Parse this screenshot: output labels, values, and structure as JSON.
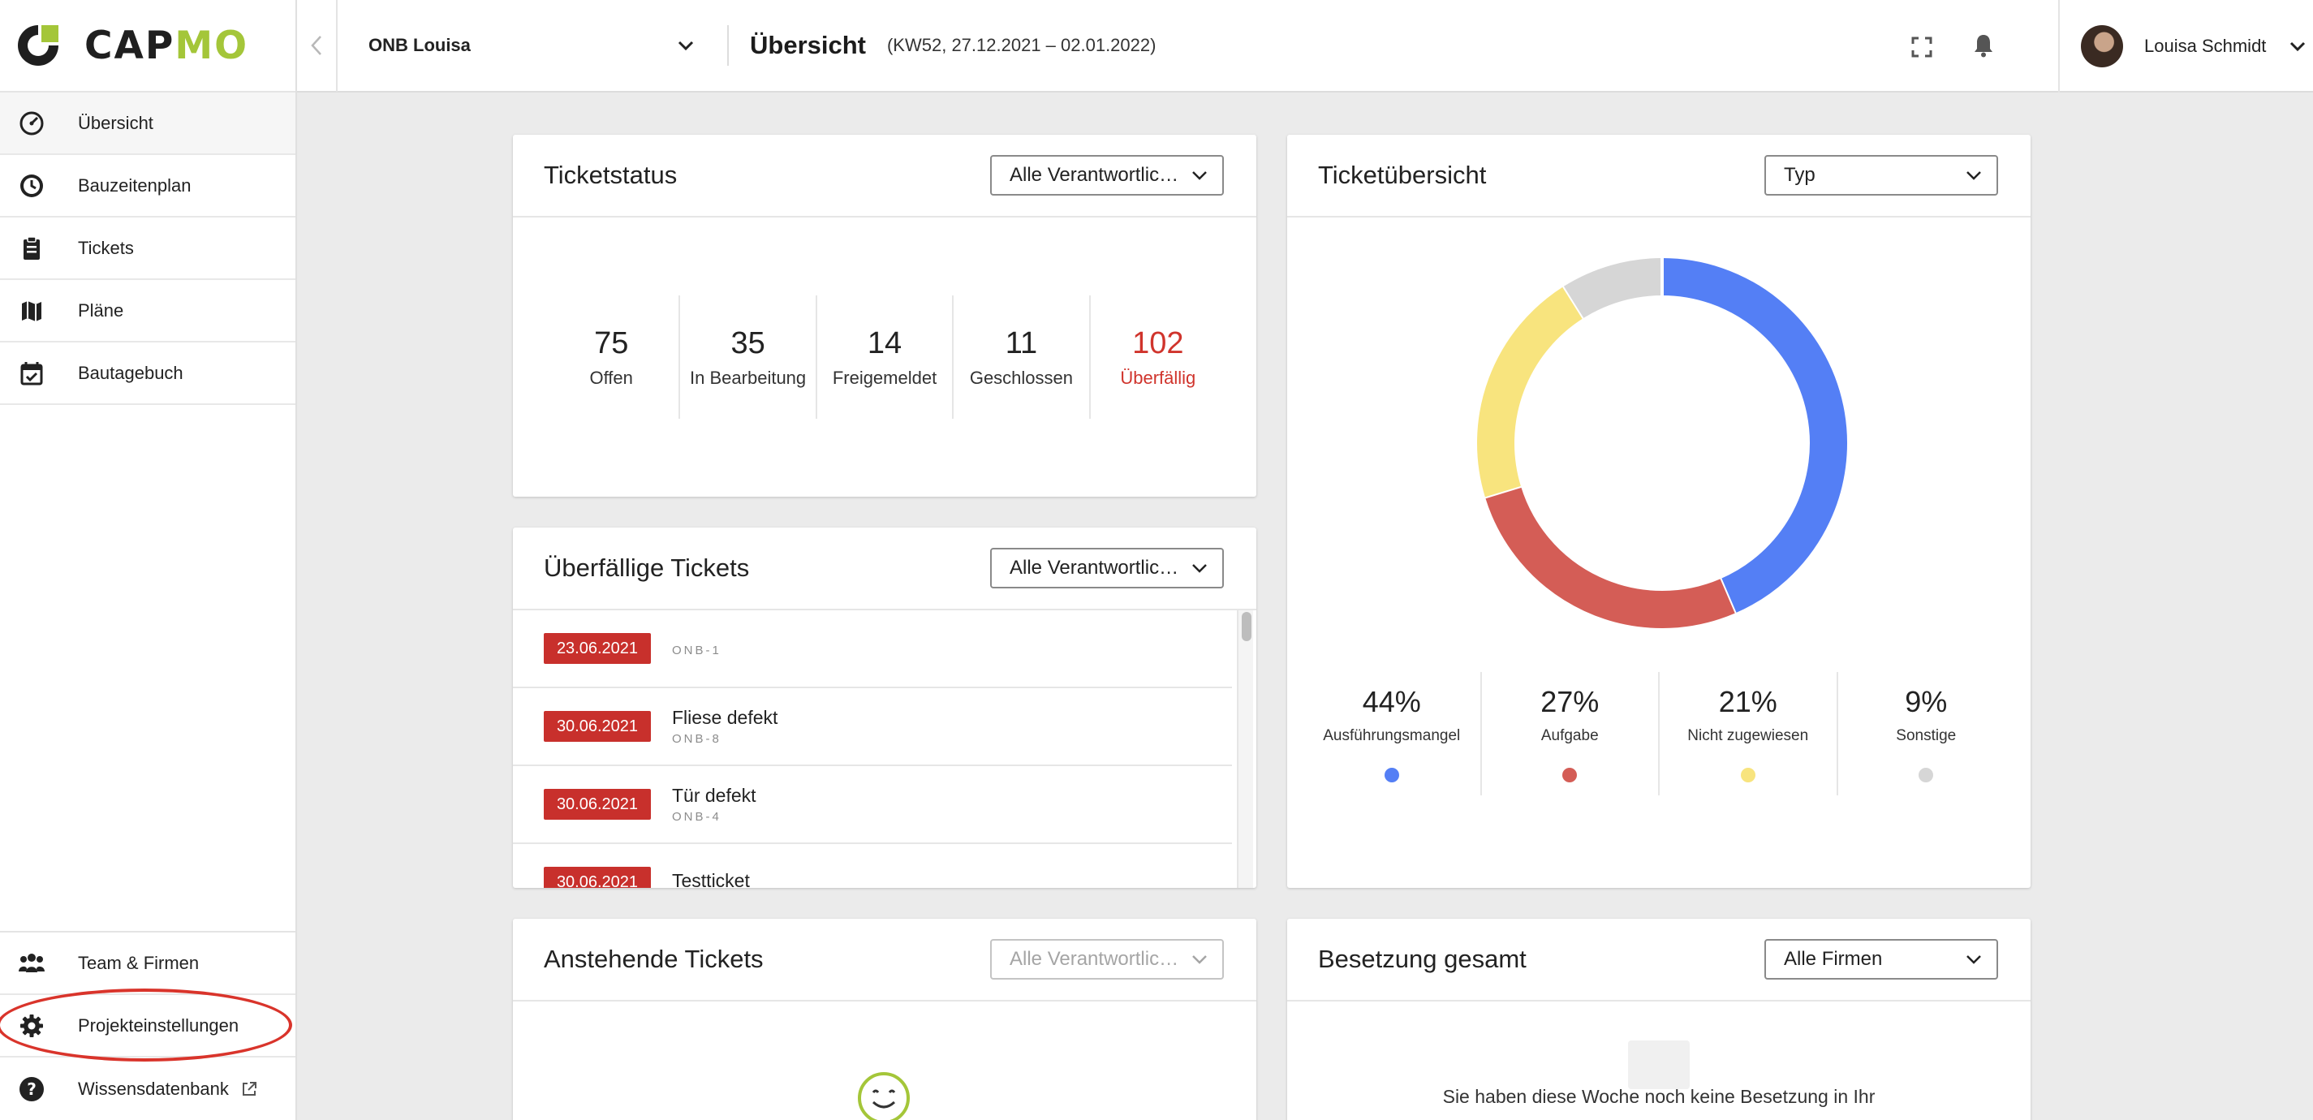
{
  "brand": {
    "logo_text_1": "CAP",
    "logo_text_2": "MO",
    "green": "#a4c639",
    "dark": "#1f1f1f"
  },
  "sidebar": {
    "items": [
      {
        "label": "Übersicht",
        "icon": "speedometer-icon",
        "active": true
      },
      {
        "label": "Bauzeitenplan",
        "icon": "clock-icon"
      },
      {
        "label": "Tickets",
        "icon": "clipboard-icon"
      },
      {
        "label": "Pläne",
        "icon": "map-icon"
      },
      {
        "label": "Bautagebuch",
        "icon": "calendar-check-icon"
      }
    ],
    "bottom_items": [
      {
        "label": "Team & Firmen",
        "icon": "people-icon"
      },
      {
        "label": "Projekteinstellungen",
        "icon": "gear-icon",
        "highlighted": true
      },
      {
        "label": "Wissensdatenbank",
        "icon": "help-icon",
        "external": true
      }
    ]
  },
  "header": {
    "project": "ONB Louisa",
    "title": "Übersicht",
    "week": "(KW52, 27.12.2021 – 02.01.2022)",
    "user": "Louisa Schmidt"
  },
  "ticketstatus": {
    "title": "Ticketstatus",
    "filter": "Alle Verantwortlichen",
    "stats": [
      {
        "value": "75",
        "label": "Offen"
      },
      {
        "value": "35",
        "label": "In Bearbeitung"
      },
      {
        "value": "14",
        "label": "Freigemeldet"
      },
      {
        "value": "11",
        "label": "Geschlossen"
      },
      {
        "value": "102",
        "label": "Überfällig"
      }
    ]
  },
  "overdue": {
    "title": "Überfällige Tickets",
    "filter": "Alle Verantwortlichen",
    "tickets": [
      {
        "date": "23.06.2021",
        "title": "",
        "id": "ONB-1"
      },
      {
        "date": "30.06.2021",
        "title": "Fliese defekt",
        "id": "ONB-8"
      },
      {
        "date": "30.06.2021",
        "title": "Tür defekt",
        "id": "ONB-4"
      },
      {
        "date": "30.06.2021",
        "title": "Testticket",
        "id": ""
      }
    ]
  },
  "upcoming": {
    "title": "Anstehende Tickets",
    "filter": "Alle Verantwortlichen"
  },
  "overview": {
    "title": "Ticketübersicht",
    "filter": "Typ",
    "segments": [
      {
        "label": "Ausführungsmangel",
        "percent": 44,
        "value_text": "44%",
        "color": "#547ff5"
      },
      {
        "label": "Aufgabe",
        "percent": 27,
        "value_text": "27%",
        "color": "#d45d56"
      },
      {
        "label": "Nicht zugewiesen",
        "percent": 21,
        "value_text": "21%",
        "color": "#f8e47e"
      },
      {
        "label": "Sonstige",
        "percent": 9,
        "value_text": "9%",
        "color": "#d6d6d6"
      }
    ]
  },
  "staffing": {
    "title": "Besetzung gesamt",
    "filter": "Alle Firmen",
    "empty_text": "Sie haben diese Woche noch keine Besetzung in Ihr"
  }
}
